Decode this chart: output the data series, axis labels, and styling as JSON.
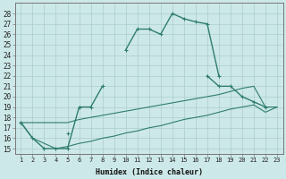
{
  "xlabel": "Humidex (Indice chaleur)",
  "x": [
    1,
    2,
    3,
    4,
    5,
    6,
    7,
    8,
    9,
    10,
    11,
    12,
    13,
    14,
    15,
    16,
    17,
    18,
    19,
    20,
    21,
    22,
    23
  ],
  "series1": [
    17.5,
    16.0,
    15.0,
    15.0,
    15.0,
    19.0,
    19.0,
    21.0,
    null,
    24.5,
    26.5,
    26.5,
    26.0,
    28.0,
    27.5,
    27.2,
    27.0,
    22.0,
    null,
    null,
    null,
    null,
    null
  ],
  "series2": [
    17.5,
    null,
    null,
    null,
    16.5,
    null,
    null,
    null,
    null,
    null,
    null,
    null,
    null,
    null,
    null,
    null,
    22.0,
    21.0,
    21.0,
    20.0,
    19.5,
    19.0,
    null
  ],
  "series3": [
    17.5,
    17.5,
    17.5,
    17.5,
    17.5,
    17.8,
    18.0,
    18.2,
    18.4,
    18.6,
    18.8,
    19.0,
    19.2,
    19.4,
    19.6,
    19.8,
    20.0,
    20.2,
    20.5,
    20.8,
    21.0,
    19.0,
    19.0
  ],
  "series4": [
    17.5,
    16.0,
    15.5,
    15.0,
    15.2,
    15.5,
    15.7,
    16.0,
    16.2,
    16.5,
    16.7,
    17.0,
    17.2,
    17.5,
    17.8,
    18.0,
    18.2,
    18.5,
    18.8,
    19.0,
    19.2,
    18.5,
    19.0
  ],
  "color": "#2e7d6e",
  "bg_color": "#cde8e8",
  "grid_color": "#aacece",
  "ylim": [
    14.5,
    29
  ],
  "xlim": [
    0.5,
    23.5
  ],
  "yticks": [
    15,
    16,
    17,
    18,
    19,
    20,
    21,
    22,
    23,
    24,
    25,
    26,
    27,
    28
  ],
  "xticks": [
    1,
    2,
    3,
    4,
    5,
    6,
    7,
    8,
    9,
    10,
    11,
    12,
    13,
    14,
    15,
    16,
    17,
    18,
    19,
    20,
    21,
    22,
    23
  ]
}
